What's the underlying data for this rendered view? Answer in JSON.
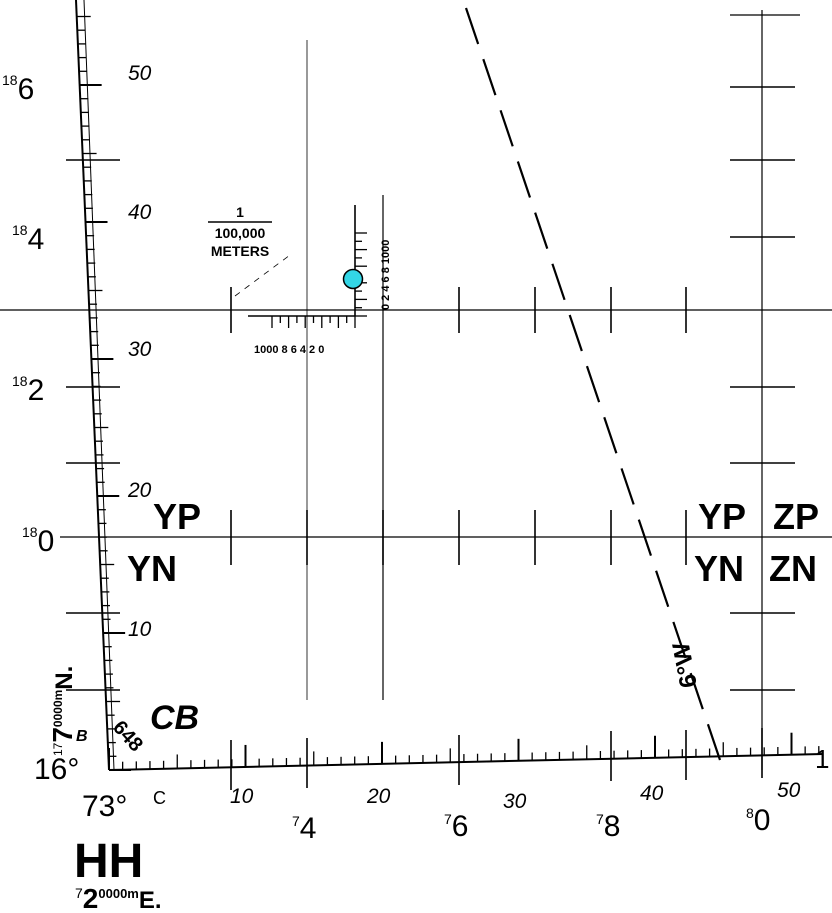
{
  "map": {
    "northing_labels": [
      {
        "sup": "18",
        "main": "6"
      },
      {
        "sup": "18",
        "main": "4"
      },
      {
        "sup": "18",
        "main": "2"
      },
      {
        "sup": "18",
        "main": "0"
      }
    ],
    "border_minutes_left": [
      "50",
      "40",
      "30",
      "20",
      "10"
    ],
    "border_minutes_bottom": [
      "10",
      "20",
      "30",
      "40",
      "50"
    ],
    "easting_labels": [
      {
        "sup": "7",
        "main": "4"
      },
      {
        "sup": "7",
        "main": "6"
      },
      {
        "sup": "7",
        "main": "8"
      },
      {
        "sup": "8",
        "main": "0"
      }
    ],
    "grid_zone_labels": {
      "yp_left": "YP",
      "yn_left": "YN",
      "yp_right": "YP",
      "yn_right": "YN",
      "zp": "ZP",
      "zn": "ZN",
      "cb": "CB"
    },
    "corner": {
      "latitude": "16°",
      "longitude": "73°",
      "hh": "HH",
      "easting_sup": "7",
      "easting_main": "2",
      "easting_small": "0000m",
      "easting_suffix": "E.",
      "northing_sup": "17",
      "northing_main": "7",
      "northing_small": "0000m",
      "northing_suffix": "N.",
      "b_label": "B",
      "c_label": "C",
      "bottom_right_label": "1",
      "small_numbers": "648"
    },
    "scale": {
      "numerator": "1",
      "denominator": "100,000",
      "unit": "METERS",
      "horizontal_ticks": "1000 8 6 4 2 0",
      "vertical_ticks": "0 2 4 6 8 1000"
    },
    "dashed_line_label": "6°W",
    "colors": {
      "marker": "#33d6e6",
      "ink": "#000000"
    }
  }
}
